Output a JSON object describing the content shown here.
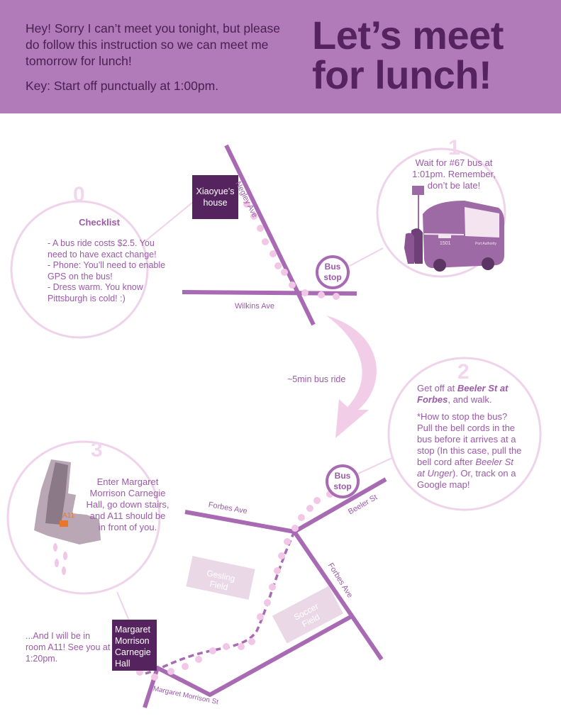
{
  "header": {
    "intro_line1": "Hey! Sorry I can’t meet you tonight, but please do follow this instruction so we can meet me tomorrow for lunch!",
    "intro_key": "Key: Start off punctually at 1:00pm.",
    "title_line1": "Let’s meet",
    "title_line2": "for lunch!"
  },
  "step0": {
    "number": "0",
    "heading": "Checklist",
    "items": [
      "- A bus ride costs $2.5. You need to have exact change!",
      "- Phone: You’ll need to enable GPS on the bus!",
      "- Dress warm. You know Pittsburgh is cold! :)"
    ]
  },
  "step1": {
    "number": "1",
    "text": "Wait for #67 bus at 1:01pm. Remember, don’t be late!",
    "bus_number": "1501",
    "bus_brand": "Port Authority"
  },
  "step2": {
    "number": "2",
    "line_prefix": "Get off at ",
    "line_bold": "Beeler St at Forbes",
    "line_suffix": ", and walk.",
    "tip_prefix": "*How to stop the bus? Pull the bell cords in the bus before it arrives at a stop (In this case, pull the bell cord after ",
    "tip_italic": "Beeler St at Unger",
    "tip_suffix": "). Or, track on a Google map!"
  },
  "step3": {
    "number": "3",
    "text": "Enter Margaret Morrison Carnegie Hall, go down stairs, and A11 should be in front of you.",
    "room_label": "A11"
  },
  "map": {
    "start_box": "Xiaoyue’s house",
    "end_box": "Margaret Morrison Carnegie Hall",
    "bus_stop_label": "Bus stop",
    "ride_label": "~5min bus ride",
    "final_note": "...And I will be in room A11! See you at 1:20pm.",
    "streets": {
      "negley": "Negley Ave",
      "wilkins": "Wilkins Ave",
      "forbes_top": "Forbes Ave",
      "beeler": "Beeler St",
      "forbes_right": "Forbes Ave",
      "margaret": "Margaret Morrison St"
    },
    "fields": {
      "gesling": "Gesling Field",
      "soccer": "Soccer Field"
    }
  },
  "colors": {
    "header_bg": "#b07bb8",
    "title": "#55245f",
    "street": "#a86ab2",
    "circle": "#efd3ea",
    "dots": "#f0c8e6",
    "box": "#55245f",
    "field": "#ead8e6"
  }
}
